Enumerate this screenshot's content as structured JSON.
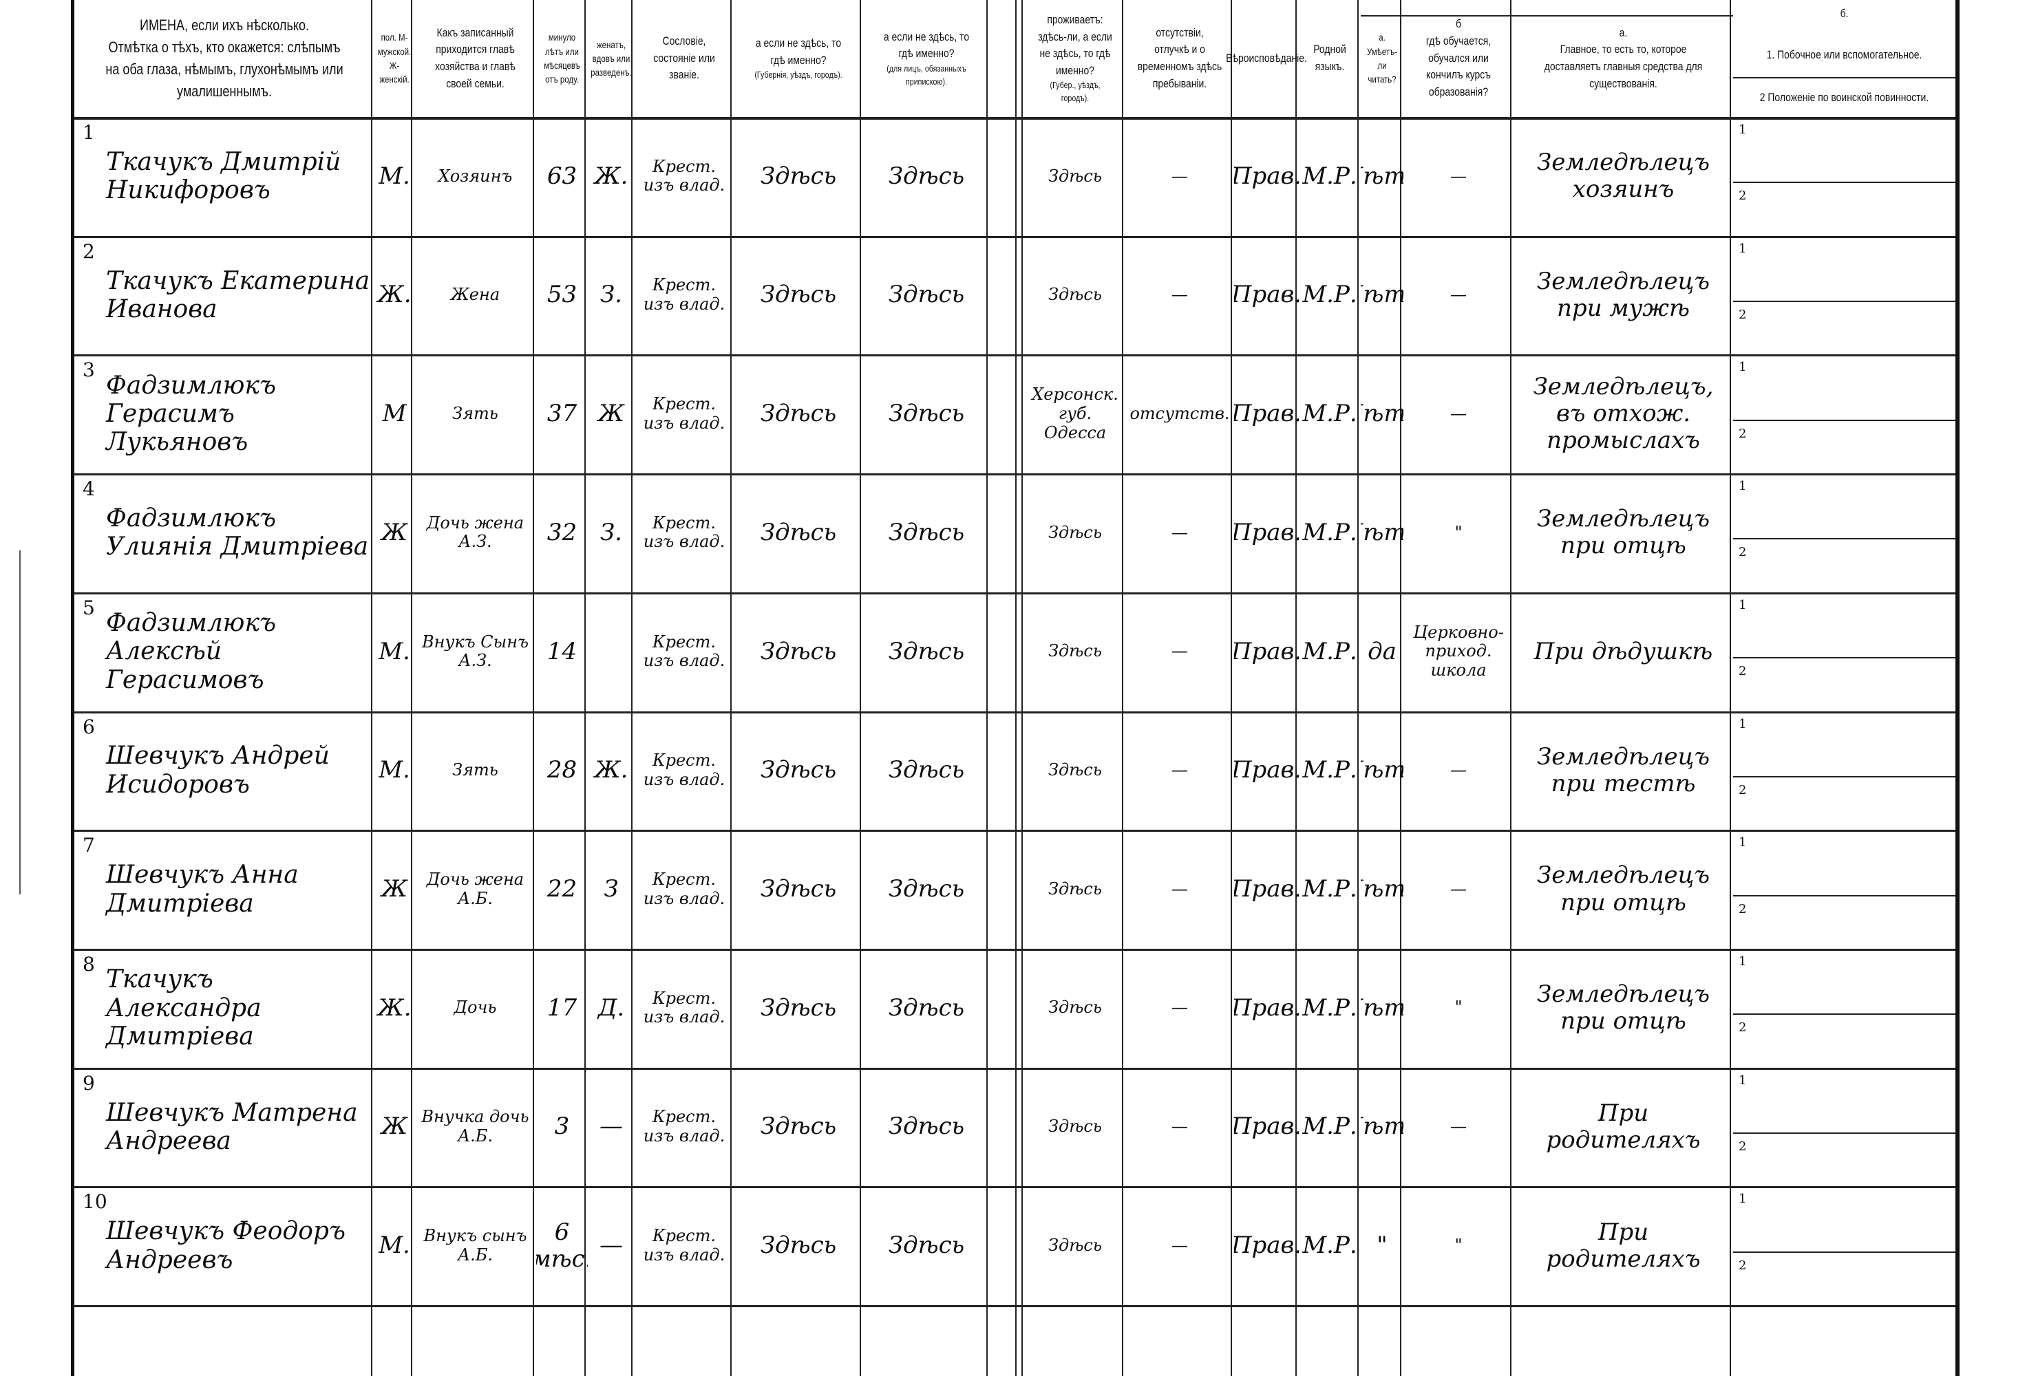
{
  "headers": {
    "name": [
      "ИМЕНА, если ихъ нѣсколько.",
      "Отмѣтка о тѣхъ, кто окажется: слѣпымъ на оба глаза, нѣмымъ, глухонѣмымъ или умалишеннымъ."
    ],
    "sex": "пол. М-мужской. Ж-женскій.",
    "relation": "Какъ записанный приходится главѣ хозяйства и главѣ своей семьи.",
    "age": "минуло лѣтъ или мѣсяцевъ отъ роду.",
    "marital": "женатъ, вдовъ или разведенъ.",
    "estate": "Сословіе, состояніе или званіе.",
    "birthplace": "а если не здѣсь, то гдѣ именно?",
    "birthplace_note": "(Губернія, уѣздъ, городъ).",
    "registered": "а если не здѣсь, то гдѣ именно?",
    "registered_note": "(для лицъ, обязанныхъ припискою).",
    "residence": "проживаетъ: здѣсь-ли, а если не здѣсь, то гдѣ именно?",
    "residence_note": "(Губер., уѣздъ, городъ).",
    "absence": "отсутствіи, отлучкѣ и о временномъ здѣсь пребываніи.",
    "religion": "Вѣроисповѣданіе.",
    "language": "Родной языкъ.",
    "literacy_a_letter": "а.",
    "literacy_a": "Умѣетъ-ли читать?",
    "literacy_b_letter": "б",
    "literacy_b": "гдѣ обучается, обучался или кончилъ курсъ образованія?",
    "occupation_a_letter": "а.",
    "occupation_a": "Главное, то есть то, которое доставляетъ главныя средства для существованія.",
    "occupation_b_letter": "б.",
    "occupation_b1": "1. Побочное или вспомогательное.",
    "occupation_b2": "2 Положеніе по воинской повинности."
  },
  "rows": [
    {
      "n": "1",
      "name": "Ткачукъ Дмитрій Никифоровъ",
      "sex": "М.",
      "relation": "Хозяинъ",
      "age": "63",
      "marital": "Ж.",
      "estate": "Крест. изъ влад.",
      "birthplace": "Здѣсь",
      "registered": "Здѣсь",
      "residence": "Здѣсь",
      "absence": "—",
      "religion": "Прав.",
      "language": "М.Р.",
      "literate": "Нѣтъ",
      "school": "—",
      "occupation": "Земледѣлецъ хозяинъ"
    },
    {
      "n": "2",
      "name": "Ткачукъ Екатерина Иванова",
      "sex": "Ж.",
      "relation": "Жена",
      "age": "53",
      "marital": "З.",
      "estate": "Крест. изъ влад.",
      "birthplace": "Здѣсь",
      "registered": "Здѣсь",
      "residence": "Здѣсь",
      "absence": "—",
      "religion": "Прав.",
      "language": "М.Р.",
      "literate": "Нѣтъ",
      "school": "—",
      "occupation": "Земледѣлецъ при мужѣ"
    },
    {
      "n": "3",
      "name": "Фадзимлюкъ Герасимъ Лукьяновъ",
      "sex": "М",
      "relation": "Зять",
      "age": "37",
      "marital": "Ж",
      "estate": "Крест. изъ влад.",
      "birthplace": "Здѣсь",
      "registered": "Здѣсь",
      "residence": "Херсонск. губ. Одесса",
      "absence": "отсутств.",
      "religion": "Прав.",
      "language": "М.Р.",
      "literate": "Нѣтъ",
      "school": "—",
      "occupation": "Земледѣлецъ, въ отхож. промыслахъ"
    },
    {
      "n": "4",
      "name": "Фадзимлюкъ Улиянія Дмитріева",
      "sex": "Ж",
      "relation": "Дочь жена А.З.",
      "age": "32",
      "marital": "З.",
      "estate": "Крест. изъ влад.",
      "birthplace": "Здѣсь",
      "registered": "Здѣсь",
      "residence": "Здѣсь",
      "absence": "—",
      "religion": "Прав.",
      "language": "М.Р.",
      "literate": "Нѣтъ",
      "school": "\"",
      "occupation": "Земледѣлецъ при отцѣ"
    },
    {
      "n": "5",
      "name": "Фадзимлюкъ Алексѣй Герасимовъ",
      "sex": "М.",
      "relation": "Внукъ Сынъ А.З.",
      "age": "14",
      "marital": "",
      "estate": "Крест. изъ влад.",
      "birthplace": "Здѣсь",
      "registered": "Здѣсь",
      "residence": "Здѣсь",
      "absence": "—",
      "religion": "Прав.",
      "language": "М.Р.",
      "literate": "да",
      "school": "Церковно-приход. школа",
      "occupation": "При дѣдушкѣ"
    },
    {
      "n": "6",
      "name": "Шевчукъ Андрей Исидоровъ",
      "sex": "М.",
      "relation": "Зять",
      "age": "28",
      "marital": "Ж.",
      "estate": "Крест. изъ влад.",
      "birthplace": "Здѣсь",
      "registered": "Здѣсь",
      "residence": "Здѣсь",
      "absence": "—",
      "religion": "Прав.",
      "language": "М.Р.",
      "literate": "Нѣтъ",
      "school": "—",
      "occupation": "Земледѣлецъ при тестѣ"
    },
    {
      "n": "7",
      "name": "Шевчукъ Анна Дмитріева",
      "sex": "Ж",
      "relation": "Дочь жена А.Б.",
      "age": "22",
      "marital": "З",
      "estate": "Крест. изъ влад.",
      "birthplace": "Здѣсь",
      "registered": "Здѣсь",
      "residence": "Здѣсь",
      "absence": "—",
      "religion": "Прав.",
      "language": "М.Р.",
      "literate": "Нѣтъ",
      "school": "—",
      "occupation": "Земледѣлецъ при отцѣ"
    },
    {
      "n": "8",
      "name": "Ткачукъ Александра Дмитріева",
      "sex": "Ж.",
      "relation": "Дочь",
      "age": "17",
      "marital": "Д.",
      "estate": "Крест. изъ влад.",
      "birthplace": "Здѣсь",
      "registered": "Здѣсь",
      "residence": "Здѣсь",
      "absence": "—",
      "religion": "Прав.",
      "language": "М.Р.",
      "literate": "Нѣтъ",
      "school": "\"",
      "occupation": "Земледѣлецъ при отцѣ"
    },
    {
      "n": "9",
      "name": "Шевчукъ Матрена Андреева",
      "sex": "Ж",
      "relation": "Внучка дочь А.Б.",
      "age": "3",
      "marital": "—",
      "estate": "Крест. изъ влад.",
      "birthplace": "Здѣсь",
      "registered": "Здѣсь",
      "residence": "Здѣсь",
      "absence": "—",
      "religion": "Прав.",
      "language": "М.Р.",
      "literate": "Нѣтъ",
      "school": "—",
      "occupation": "При родителяхъ"
    },
    {
      "n": "10",
      "name": "Шевчукъ Феодоръ Андреевъ",
      "sex": "М.",
      "relation": "Внукъ сынъ А.Б.",
      "age": "6 мѣс.",
      "marital": "—",
      "estate": "Крест. изъ влад.",
      "birthplace": "Здѣсь",
      "registered": "Здѣсь",
      "residence": "Здѣсь",
      "absence": "—",
      "religion": "Прав.",
      "language": "М.Р.",
      "literate": "\"",
      "school": "\"",
      "occupation": "При родителяхъ"
    }
  ],
  "sub_labels": [
    "1",
    "2"
  ]
}
